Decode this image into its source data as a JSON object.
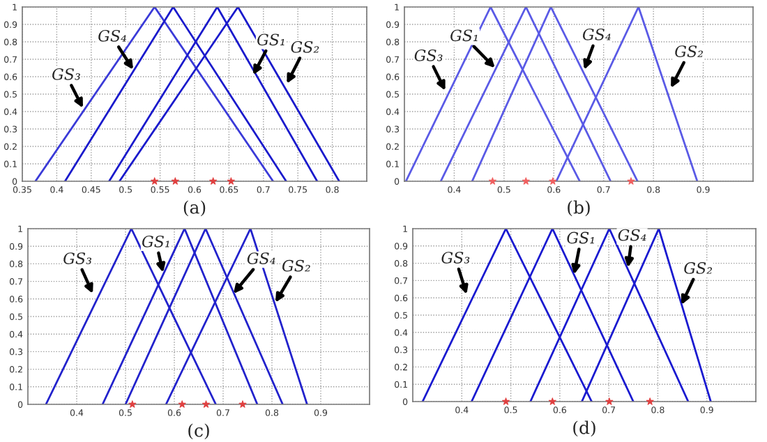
{
  "chart_data": [
    {
      "type": "line",
      "xlabel": "(a)",
      "xlim": [
        0.35,
        0.85
      ],
      "xticks": [
        0.35,
        0.4,
        0.45,
        0.5,
        0.55,
        0.6,
        0.65,
        0.7,
        0.75,
        0.8,
        {
          "value": 0.85,
          "label": null
        }
      ],
      "ylim": [
        0,
        1
      ],
      "yticks": [
        0,
        0.1,
        0.2,
        0.3,
        0.4,
        0.5,
        0.6,
        0.7,
        0.8,
        0.9,
        1
      ],
      "grid": true,
      "line_style": "solid",
      "series": [
        {
          "color": "#3a3ad8",
          "x": [
            0.369,
            0.542,
            0.714
          ],
          "values": [
            0,
            1,
            0
          ]
        },
        {
          "color": "#1a1acc",
          "x": [
            0.412,
            0.569,
            0.733
          ],
          "values": [
            0,
            1,
            0
          ]
        },
        {
          "color": "#1a1acc",
          "x": [
            0.476,
            0.633,
            0.778
          ],
          "values": [
            0,
            1,
            0
          ]
        },
        {
          "color": "#1a1acc",
          "x": [
            0.491,
            0.663,
            0.81
          ],
          "values": [
            0,
            1,
            0
          ]
        },
        {
          "type": "scatter",
          "marker": "star",
          "color": "#e04040",
          "x": [
            0.542,
            0.572,
            0.627,
            0.653
          ],
          "values": [
            0,
            0,
            0,
            0
          ]
        }
      ],
      "annotations": [
        {
          "text": "GS₃",
          "x": 0.438,
          "y": 0.42
        },
        {
          "text": "GS₄",
          "x": 0.511,
          "y": 0.64
        },
        {
          "text": "GS₁",
          "x": 0.685,
          "y": 0.61
        },
        {
          "text": "GS₂",
          "x": 0.734,
          "y": 0.56
        }
      ]
    },
    {
      "type": "line",
      "xlabel": "(b)",
      "xlim": [
        0.3,
        1.0
      ],
      "xticks": [
        0.4,
        0.5,
        0.6,
        0.7,
        0.8,
        0.9
      ],
      "ylim": [
        0,
        1
      ],
      "yticks": [
        0,
        0.1,
        0.2,
        0.3,
        0.4,
        0.5,
        0.6,
        0.7,
        0.8,
        0.9,
        1
      ],
      "grid": true,
      "line_style": "solid",
      "series": [
        {
          "color": "#5a5ae6",
          "x": [
            0.303,
            0.473,
            0.652
          ],
          "values": [
            0,
            1,
            0
          ]
        },
        {
          "color": "#5a5ae6",
          "x": [
            0.373,
            0.544,
            0.714
          ],
          "values": [
            0,
            1,
            0
          ]
        },
        {
          "color": "#5a5ae6",
          "x": [
            0.436,
            0.594,
            0.768
          ],
          "values": [
            0,
            1,
            0
          ]
        },
        {
          "color": "#5a5ae6",
          "x": [
            0.605,
            0.77,
            0.888
          ],
          "values": [
            0,
            1,
            0
          ]
        },
        {
          "type": "scatter",
          "marker": "star",
          "color": "#f06060",
          "x": [
            0.477,
            0.544,
            0.598,
            0.755
          ],
          "values": [
            0,
            0,
            0,
            0
          ]
        }
      ],
      "annotations": [
        {
          "text": "GS₃",
          "x": 0.382,
          "y": 0.52
        },
        {
          "text": "GS₁",
          "x": 0.482,
          "y": 0.65
        },
        {
          "text": "GS₄",
          "x": 0.661,
          "y": 0.64
        },
        {
          "text": "GS₂",
          "x": 0.835,
          "y": 0.535
        }
      ]
    },
    {
      "type": "line",
      "xlabel": "(c)",
      "xlim": [
        0.3,
        1.0
      ],
      "xticks": [
        0.4,
        0.5,
        0.6,
        0.7,
        0.8,
        0.9
      ],
      "ylim": [
        0,
        1
      ],
      "yticks": [
        0,
        0.1,
        0.2,
        0.3,
        0.4,
        0.5,
        0.6,
        0.7,
        0.8,
        0.9,
        1
      ],
      "grid": true,
      "line_style": "solid",
      "series": [
        {
          "color": "#2222cc",
          "x": [
            0.337,
            0.512,
            0.685
          ],
          "values": [
            0,
            1,
            0
          ]
        },
        {
          "color": "#2222cc",
          "x": [
            0.453,
            0.621,
            0.77
          ],
          "values": [
            0,
            1,
            0
          ]
        },
        {
          "color": "#2222cc",
          "x": [
            0.5,
            0.664,
            0.822
          ],
          "values": [
            0,
            1,
            0
          ]
        },
        {
          "color": "#2222cc",
          "x": [
            0.583,
            0.756,
            0.872
          ],
          "values": [
            0,
            1,
            0
          ]
        },
        {
          "type": "scatter",
          "marker": "star",
          "color": "#e04040",
          "x": [
            0.514,
            0.616,
            0.665,
            0.74
          ],
          "values": [
            0,
            0,
            0,
            0
          ]
        }
      ],
      "annotations": [
        {
          "text": "GS₃",
          "x": 0.433,
          "y": 0.63
        },
        {
          "text": "GS₁",
          "x": 0.577,
          "y": 0.75
        },
        {
          "text": "GS₄",
          "x": 0.721,
          "y": 0.63
        },
        {
          "text": "GS₂",
          "x": 0.807,
          "y": 0.58
        }
      ]
    },
    {
      "type": "line",
      "xlabel": "(d)",
      "xlim": [
        0.3,
        1.0
      ],
      "xticks": [
        0.4,
        0.5,
        0.6,
        0.7,
        0.8,
        0.9
      ],
      "ylim": [
        0,
        1
      ],
      "yticks": [
        0,
        0.1,
        0.2,
        0.3,
        0.4,
        0.5,
        0.6,
        0.7,
        0.8,
        0.9,
        1
      ],
      "grid": true,
      "line_style": "solid",
      "series": [
        {
          "color": "#1a1ad0",
          "x": [
            0.32,
            0.49,
            0.665
          ],
          "values": [
            0,
            1,
            0
          ]
        },
        {
          "color": "#1a1ad0",
          "x": [
            0.42,
            0.585,
            0.75
          ],
          "values": [
            0,
            1,
            0
          ]
        },
        {
          "color": "#1a1ad0",
          "x": [
            0.54,
            0.701,
            0.862
          ],
          "values": [
            0,
            1,
            0
          ]
        },
        {
          "color": "#1a1ad0",
          "x": [
            0.645,
            0.802,
            0.908
          ],
          "values": [
            0,
            1,
            0
          ]
        },
        {
          "type": "scatter",
          "marker": "star",
          "color": "#e04040",
          "x": [
            0.49,
            0.585,
            0.701,
            0.784
          ],
          "values": [
            0,
            0,
            0,
            0
          ]
        }
      ],
      "annotations": [
        {
          "text": "GS₃",
          "x": 0.41,
          "y": 0.62
        },
        {
          "text": "GS₁",
          "x": 0.629,
          "y": 0.735
        },
        {
          "text": "GS₄",
          "x": 0.739,
          "y": 0.775
        },
        {
          "text": "GS₂",
          "x": 0.848,
          "y": 0.56
        }
      ]
    }
  ]
}
